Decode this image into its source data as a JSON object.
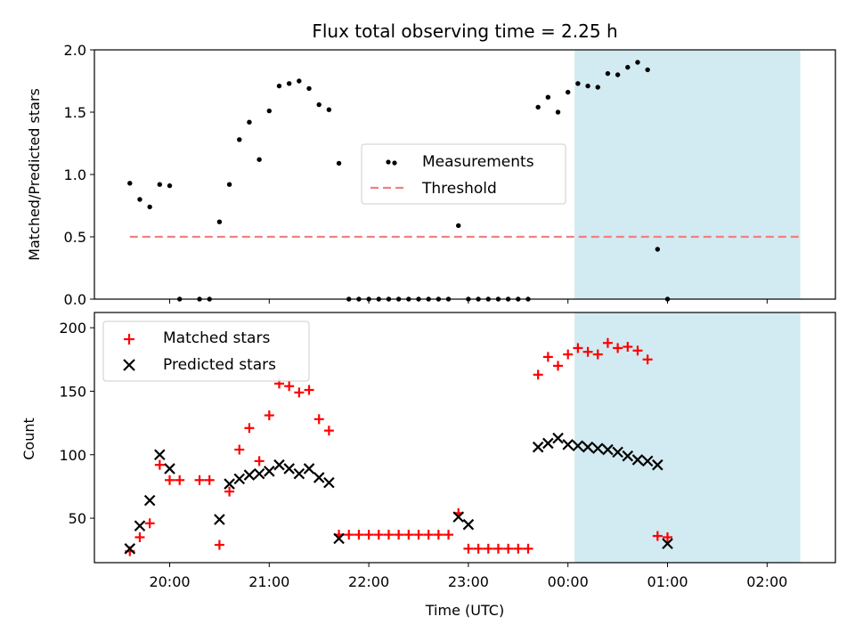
{
  "chart_data": [
    {
      "type": "scatter",
      "title": "Flux total observing time = 2.25 h",
      "xlabel": "",
      "ylabel": "Matched/Predicted stars",
      "ylim": [
        0,
        2.0
      ],
      "yticks": [
        "0.0",
        "0.5",
        "1.0",
        "1.5",
        "2.0"
      ],
      "shaded_span": [
        "00:04",
        "02:20"
      ],
      "legend": {
        "placement": "center-right",
        "entries": [
          "Measurements",
          "Threshold"
        ]
      },
      "colors": {
        "measurements": "#000000",
        "threshold": "#f08080",
        "shade": "#add8e6"
      },
      "series": [
        {
          "name": "Measurements",
          "points": [
            [
              "19:36",
              0.93
            ],
            [
              "19:42",
              0.8
            ],
            [
              "19:48",
              0.74
            ],
            [
              "19:54",
              0.92
            ],
            [
              "20:00",
              0.91
            ],
            [
              "20:06",
              0.0
            ],
            [
              "20:18",
              0.0
            ],
            [
              "20:24",
              0.0
            ],
            [
              "20:30",
              0.62
            ],
            [
              "20:36",
              0.92
            ],
            [
              "20:42",
              1.28
            ],
            [
              "20:48",
              1.42
            ],
            [
              "20:54",
              1.12
            ],
            [
              "21:00",
              1.51
            ],
            [
              "21:06",
              1.71
            ],
            [
              "21:12",
              1.73
            ],
            [
              "21:18",
              1.75
            ],
            [
              "21:24",
              1.69
            ],
            [
              "21:30",
              1.56
            ],
            [
              "21:36",
              1.52
            ],
            [
              "21:42",
              1.09
            ],
            [
              "21:48",
              0.0
            ],
            [
              "21:54",
              0.0
            ],
            [
              "22:00",
              0.0
            ],
            [
              "22:06",
              0.0
            ],
            [
              "22:12",
              0.0
            ],
            [
              "22:18",
              0.0
            ],
            [
              "22:24",
              0.0
            ],
            [
              "22:30",
              0.0
            ],
            [
              "22:36",
              0.0
            ],
            [
              "22:42",
              0.0
            ],
            [
              "22:48",
              0.0
            ],
            [
              "22:54",
              0.59
            ],
            [
              "23:00",
              0.0
            ],
            [
              "23:06",
              0.0
            ],
            [
              "23:12",
              0.0
            ],
            [
              "23:18",
              0.0
            ],
            [
              "23:24",
              0.0
            ],
            [
              "23:30",
              0.0
            ],
            [
              "23:36",
              0.0
            ],
            [
              "23:42",
              1.54
            ],
            [
              "23:48",
              1.62
            ],
            [
              "23:54",
              1.5
            ],
            [
              "00:00",
              1.66
            ],
            [
              "00:06",
              1.73
            ],
            [
              "00:12",
              1.71
            ],
            [
              "00:18",
              1.7
            ],
            [
              "00:24",
              1.81
            ],
            [
              "00:30",
              1.8
            ],
            [
              "00:36",
              1.86
            ],
            [
              "00:42",
              1.9
            ],
            [
              "00:48",
              1.84
            ],
            [
              "00:54",
              0.4
            ],
            [
              "01:00",
              0.0
            ]
          ]
        }
      ],
      "threshold": {
        "name": "Threshold",
        "value": 0.5,
        "x_range": [
          "19:36",
          "02:20"
        ]
      }
    },
    {
      "type": "scatter",
      "title": "",
      "xlabel": "Time (UTC)",
      "ylabel": "Count",
      "ylim": [
        15,
        212
      ],
      "yticks": [
        "50",
        "100",
        "150",
        "200"
      ],
      "xticks": [
        "20:00",
        "21:00",
        "22:00",
        "23:00",
        "00:00",
        "01:00",
        "02:00"
      ],
      "shaded_span": [
        "00:04",
        "02:20"
      ],
      "legend": {
        "placement": "top-left",
        "entries": [
          "Matched stars",
          "Predicted stars"
        ]
      },
      "colors": {
        "matched": "#ff0000",
        "predicted": "#000000",
        "shade": "#add8e6"
      },
      "series": [
        {
          "name": "Matched stars",
          "points": [
            [
              "19:36",
              24
            ],
            [
              "19:42",
              35
            ],
            [
              "19:48",
              46
            ],
            [
              "19:54",
              92
            ],
            [
              "20:00",
              80
            ],
            [
              "20:06",
              80
            ],
            [
              "20:18",
              80
            ],
            [
              "20:24",
              80
            ],
            [
              "20:30",
              29
            ],
            [
              "20:36",
              71
            ],
            [
              "20:42",
              104
            ],
            [
              "20:48",
              121
            ],
            [
              "20:54",
              95
            ],
            [
              "21:00",
              131
            ],
            [
              "21:06",
              156
            ],
            [
              "21:12",
              154
            ],
            [
              "21:18",
              149
            ],
            [
              "21:24",
              151
            ],
            [
              "21:30",
              128
            ],
            [
              "21:36",
              119
            ],
            [
              "21:42",
              37
            ],
            [
              "21:48",
              37
            ],
            [
              "21:54",
              37
            ],
            [
              "22:00",
              37
            ],
            [
              "22:06",
              37
            ],
            [
              "22:12",
              37
            ],
            [
              "22:18",
              37
            ],
            [
              "22:24",
              37
            ],
            [
              "22:30",
              37
            ],
            [
              "22:36",
              37
            ],
            [
              "22:42",
              37
            ],
            [
              "22:48",
              37
            ],
            [
              "22:54",
              54
            ],
            [
              "23:00",
              26
            ],
            [
              "23:06",
              26
            ],
            [
              "23:12",
              26
            ],
            [
              "23:18",
              26
            ],
            [
              "23:24",
              26
            ],
            [
              "23:30",
              26
            ],
            [
              "23:36",
              26
            ],
            [
              "23:42",
              163
            ],
            [
              "23:48",
              177
            ],
            [
              "23:54",
              170
            ],
            [
              "00:00",
              179
            ],
            [
              "00:06",
              184
            ],
            [
              "00:12",
              181
            ],
            [
              "00:18",
              179
            ],
            [
              "00:24",
              188
            ],
            [
              "00:30",
              184
            ],
            [
              "00:36",
              185
            ],
            [
              "00:42",
              182
            ],
            [
              "00:48",
              175
            ],
            [
              "00:54",
              36
            ],
            [
              "01:00",
              35
            ]
          ]
        },
        {
          "name": "Predicted stars",
          "points": [
            [
              "19:36",
              26
            ],
            [
              "19:42",
              44
            ],
            [
              "19:48",
              64
            ],
            [
              "19:54",
              100
            ],
            [
              "20:00",
              89
            ],
            [
              "20:30",
              49
            ],
            [
              "20:36",
              77
            ],
            [
              "20:42",
              81
            ],
            [
              "20:48",
              84
            ],
            [
              "20:54",
              85
            ],
            [
              "21:00",
              87
            ],
            [
              "21:06",
              92
            ],
            [
              "21:12",
              89
            ],
            [
              "21:18",
              85
            ],
            [
              "21:24",
              89
            ],
            [
              "21:30",
              82
            ],
            [
              "21:36",
              78
            ],
            [
              "21:42",
              34
            ],
            [
              "22:54",
              51
            ],
            [
              "23:00",
              45
            ],
            [
              "23:42",
              106
            ],
            [
              "23:48",
              109
            ],
            [
              "23:54",
              113
            ],
            [
              "00:00",
              108
            ],
            [
              "00:06",
              107
            ],
            [
              "00:12",
              106
            ],
            [
              "00:18",
              105
            ],
            [
              "00:24",
              104
            ],
            [
              "00:30",
              102
            ],
            [
              "00:36",
              99
            ],
            [
              "00:42",
              96
            ],
            [
              "00:48",
              95
            ],
            [
              "00:54",
              92
            ],
            [
              "01:00",
              30
            ]
          ]
        }
      ]
    }
  ]
}
